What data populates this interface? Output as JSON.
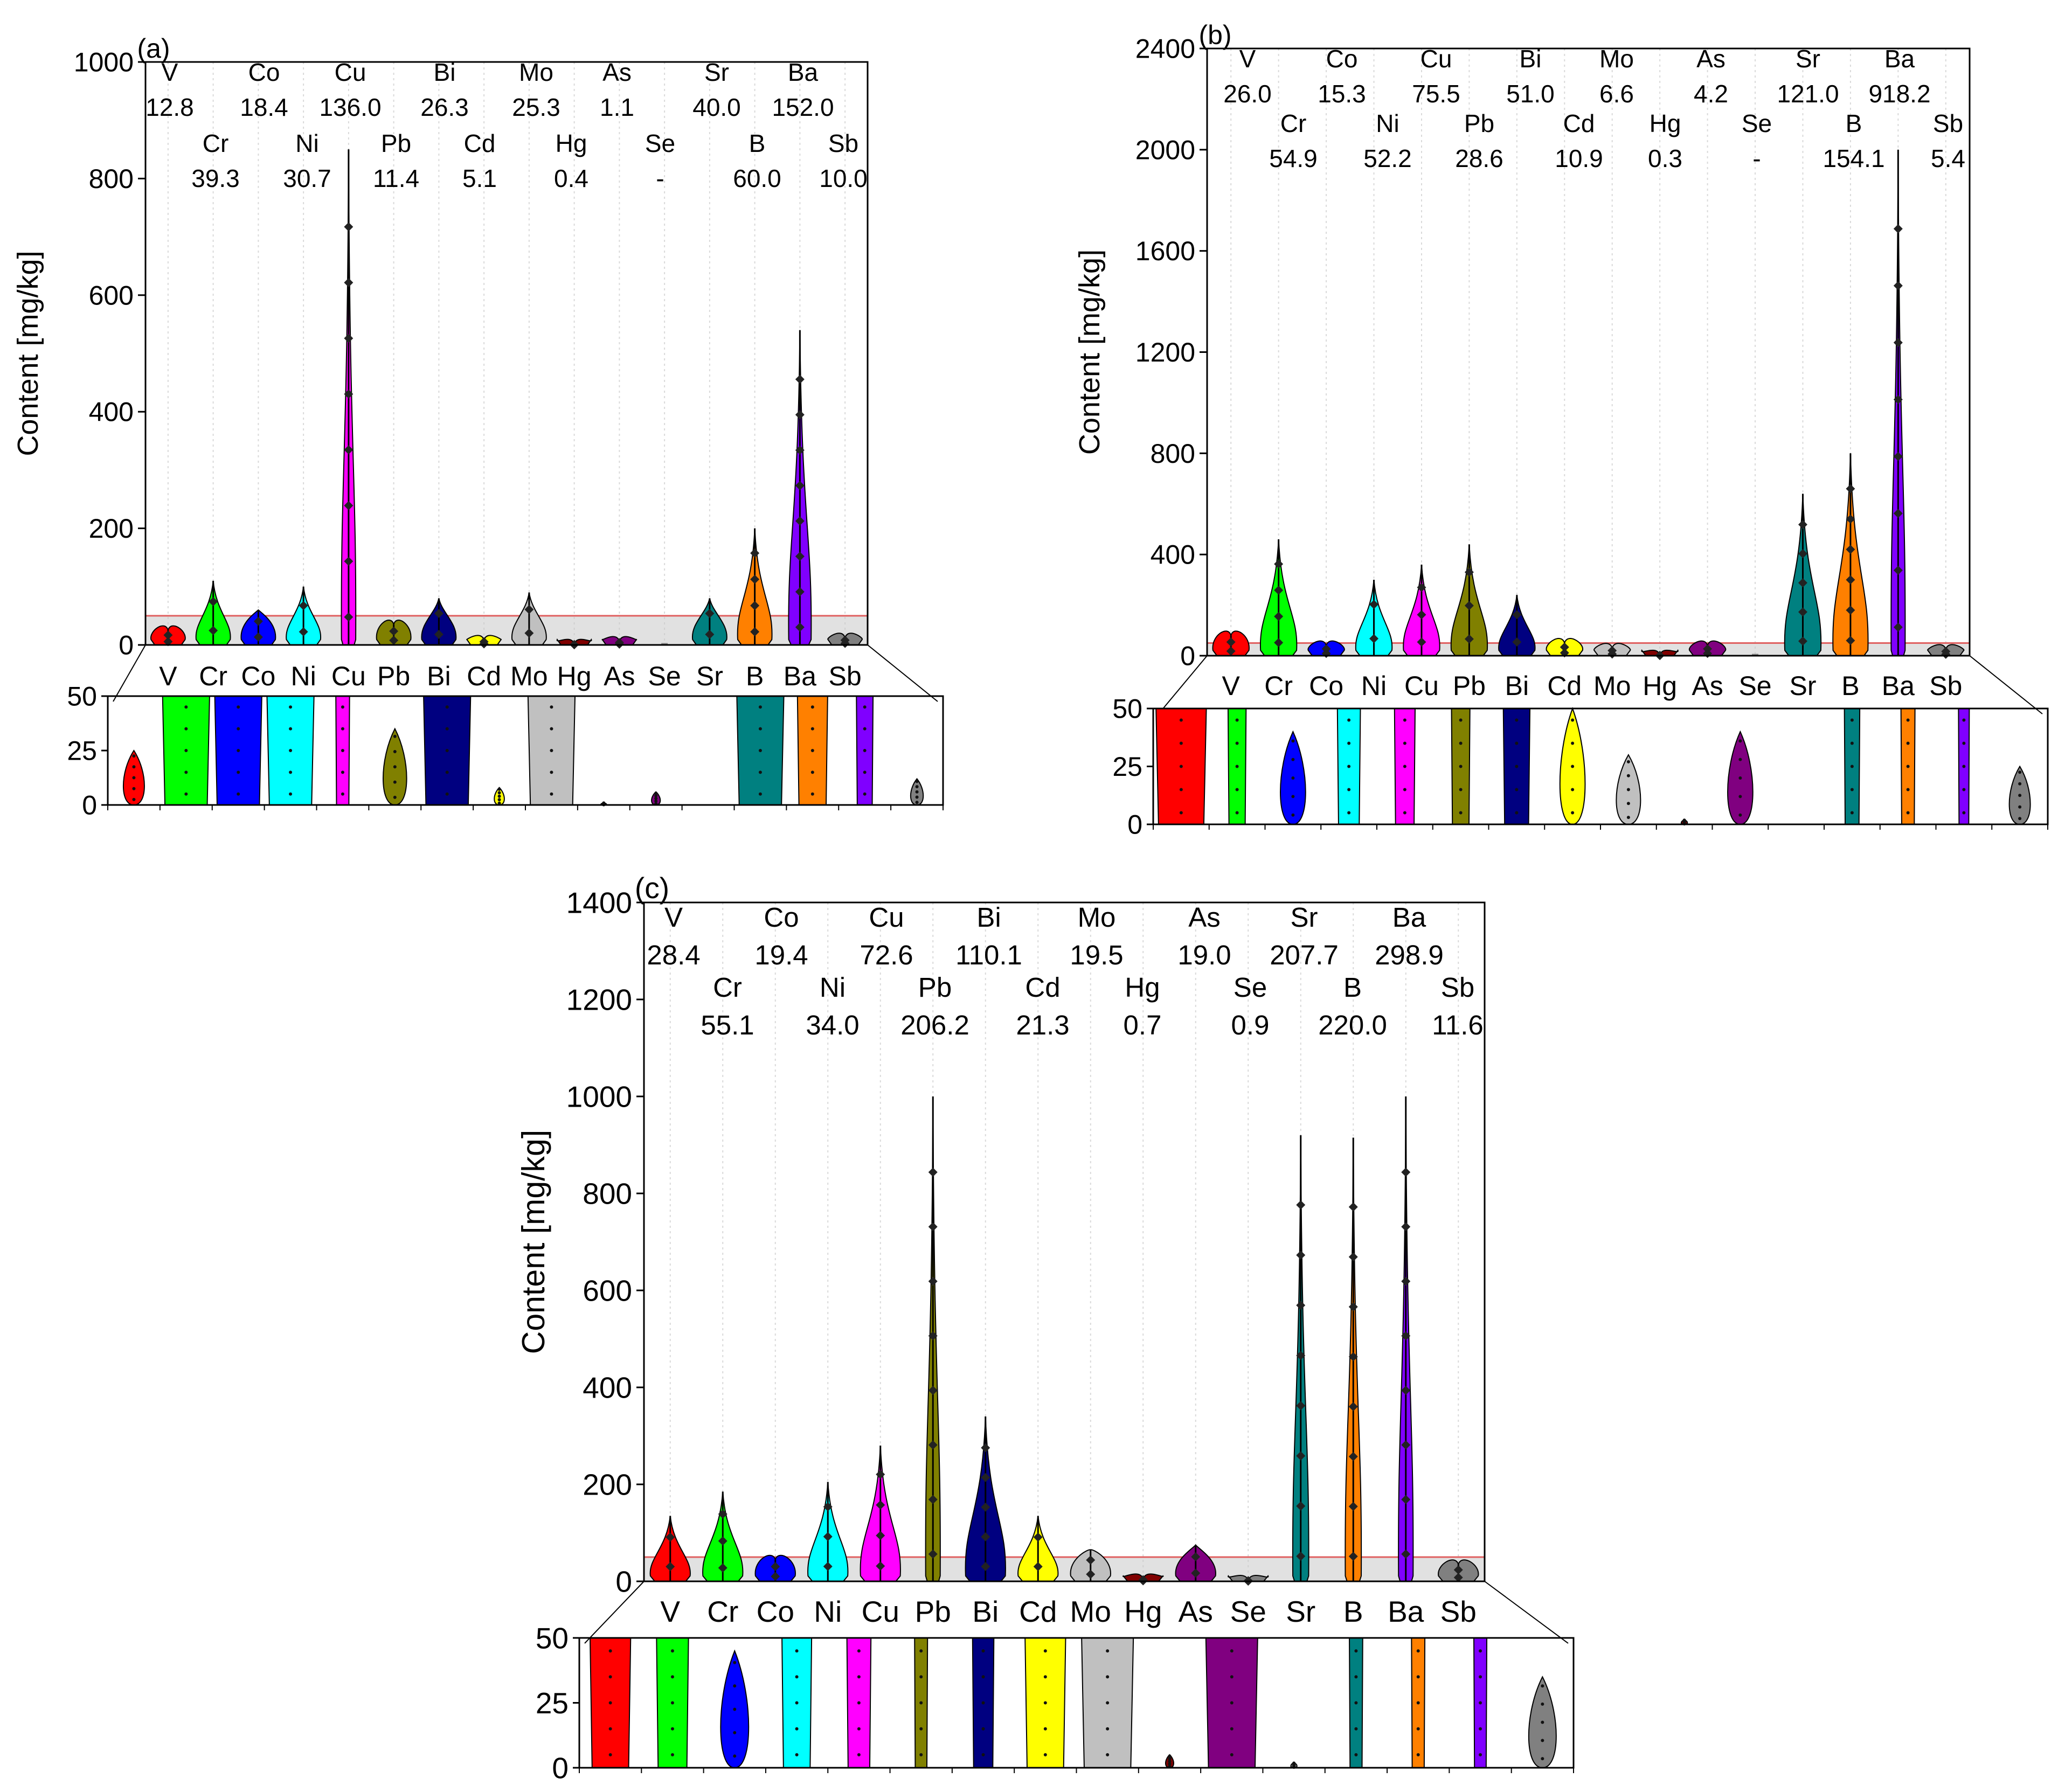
{
  "figure": {
    "colors": {
      "V": "#ff0000",
      "Cr": "#00ff00",
      "Co": "#0000ff",
      "Ni": "#00ffff",
      "Cu": "#ff00ff",
      "Pb": "#808000",
      "Bi": "#000080",
      "Cd": "#ffff00",
      "Mo": "#c0c0c0",
      "Hg": "#800000",
      "As": "#800080",
      "Se": "#808080",
      "Sr": "#008080",
      "B": "#ff8000",
      "Ba": "#8000ff",
      "Sb": "#808080"
    }
  },
  "chart_data": [
    {
      "id": "a",
      "type": "violin",
      "panel_label": "(a)",
      "ylabel": "Content [mg/kg]",
      "ylim": [
        0,
        1000
      ],
      "yticks": [
        "0",
        "200",
        "400",
        "600",
        "800",
        "1000"
      ],
      "zoom_ylim": [
        0,
        50
      ],
      "zoom_yticks": [
        "0",
        "25",
        "50"
      ],
      "categories": [
        "V",
        "Cr",
        "Co",
        "Ni",
        "Cu",
        "Pb",
        "Bi",
        "Cd",
        "Mo",
        "Hg",
        "As",
        "Se",
        "Sr",
        "B",
        "Ba",
        "Sb"
      ],
      "reference": {
        "row1": [
          [
            "V",
            "12.8"
          ],
          [
            "Co",
            "18.4"
          ],
          [
            "Cu",
            "136.0"
          ],
          [
            "Bi",
            "26.3"
          ],
          [
            "Mo",
            "25.3"
          ],
          [
            "As",
            "1.1"
          ],
          [
            "Sr",
            "40.0"
          ],
          [
            "Ba",
            "152.0"
          ]
        ],
        "row2": [
          [
            "Cr",
            "39.3"
          ],
          [
            "Ni",
            "30.7"
          ],
          [
            "Pb",
            "11.4"
          ],
          [
            "Cd",
            "5.1"
          ],
          [
            "Hg",
            "0.4"
          ],
          [
            "Se",
            "-"
          ],
          [
            "B",
            "60.0"
          ],
          [
            "Sb",
            "10.0"
          ]
        ]
      },
      "max_values": {
        "V": 25,
        "Cr": 110,
        "Co": 60,
        "Ni": 100,
        "Cu": 850,
        "Pb": 35,
        "Bi": 80,
        "Cd": 8,
        "Mo": 90,
        "Hg": 1,
        "As": 6,
        "Se": 0,
        "Sr": 80,
        "B": 200,
        "Ba": 540,
        "Sb": 12
      }
    },
    {
      "id": "b",
      "type": "violin",
      "panel_label": "(b)",
      "ylabel": "Content [mg/kg]",
      "ylim": [
        0,
        2400
      ],
      "yticks": [
        "0",
        "400",
        "800",
        "1200",
        "1600",
        "2000",
        "2400"
      ],
      "zoom_ylim": [
        0,
        50
      ],
      "zoom_yticks": [
        "0",
        "25",
        "50"
      ],
      "categories": [
        "V",
        "Cr",
        "Co",
        "Ni",
        "Cu",
        "Pb",
        "Bi",
        "Cd",
        "Mo",
        "Hg",
        "As",
        "Se",
        "Sr",
        "B",
        "Ba",
        "Sb"
      ],
      "reference": {
        "row1": [
          [
            "V",
            "26.0"
          ],
          [
            "Co",
            "15.3"
          ],
          [
            "Cu",
            "75.5"
          ],
          [
            "Bi",
            "51.0"
          ],
          [
            "Mo",
            "6.6"
          ],
          [
            "As",
            "4.2"
          ],
          [
            "Sr",
            "121.0"
          ],
          [
            "Ba",
            "918.2"
          ]
        ],
        "row2": [
          [
            "Cr",
            "54.9"
          ],
          [
            "Ni",
            "52.2"
          ],
          [
            "Pb",
            "28.6"
          ],
          [
            "Cd",
            "10.9"
          ],
          [
            "Hg",
            "0.3"
          ],
          [
            "Se",
            "-"
          ],
          [
            "B",
            "154.1"
          ],
          [
            "Sb",
            "5.4"
          ]
        ]
      },
      "max_values": {
        "V": 80,
        "Cr": 460,
        "Co": 40,
        "Ni": 300,
        "Cu": 360,
        "Pb": 440,
        "Bi": 240,
        "Cd": 50,
        "Mo": 30,
        "Hg": 2,
        "As": 40,
        "Se": 0,
        "Sr": 640,
        "B": 800,
        "Ba": 2000,
        "Sb": 25
      }
    },
    {
      "id": "c",
      "type": "violin",
      "panel_label": "(c)",
      "ylabel": "Content [mg/kg]",
      "ylim": [
        0,
        1400
      ],
      "yticks": [
        "0",
        "200",
        "400",
        "600",
        "800",
        "1000",
        "1200",
        "1400"
      ],
      "zoom_ylim": [
        0,
        50
      ],
      "zoom_yticks": [
        "0",
        "25",
        "50"
      ],
      "categories": [
        "V",
        "Cr",
        "Co",
        "Ni",
        "Cu",
        "Pb",
        "Bi",
        "Cd",
        "Mo",
        "Hg",
        "As",
        "Se",
        "Sr",
        "B",
        "Ba",
        "Sb"
      ],
      "reference": {
        "row1": [
          [
            "V",
            "28.4"
          ],
          [
            "Co",
            "19.4"
          ],
          [
            "Cu",
            "72.6"
          ],
          [
            "Bi",
            "110.1"
          ],
          [
            "Mo",
            "19.5"
          ],
          [
            "As",
            "19.0"
          ],
          [
            "Sr",
            "207.7"
          ],
          [
            "Ba",
            "298.9"
          ]
        ],
        "row2": [
          [
            "Cr",
            "55.1"
          ],
          [
            "Ni",
            "34.0"
          ],
          [
            "Pb",
            "206.2"
          ],
          [
            "Cd",
            "21.3"
          ],
          [
            "Hg",
            "0.7"
          ],
          [
            "Se",
            "0.9"
          ],
          [
            "B",
            "220.0"
          ],
          [
            "Sb",
            "11.6"
          ]
        ]
      },
      "max_values": {
        "V": 135,
        "Cr": 185,
        "Co": 45,
        "Ni": 205,
        "Cu": 280,
        "Pb": 1000,
        "Bi": 340,
        "Cd": 135,
        "Mo": 65,
        "Hg": 5,
        "As": 75,
        "Se": 2,
        "Sr": 920,
        "B": 915,
        "Ba": 1000,
        "Sb": 35
      }
    }
  ]
}
